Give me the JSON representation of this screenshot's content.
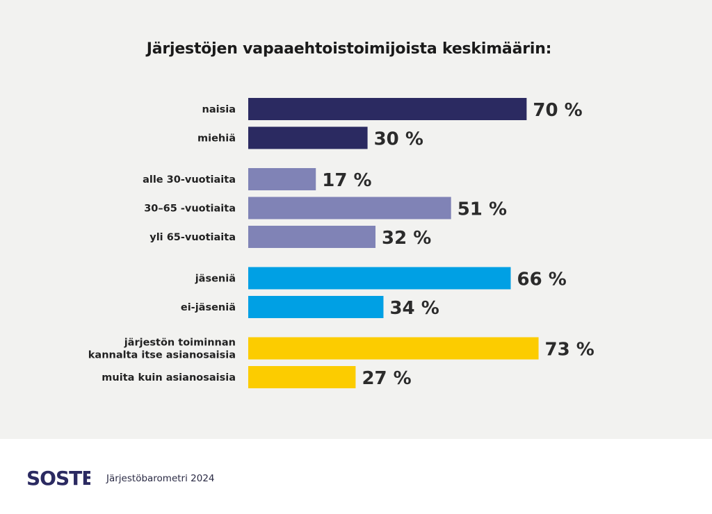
{
  "title": "Järjestöjen vapaaehtoistoimijoista keskimäärin:",
  "logo_text": "SOSTE",
  "source": "Järjestöbarometri 2024",
  "colors": {
    "gender": "#2b2a61",
    "age": "#8083b6",
    "membership": "#00a0e4",
    "stakeholder": "#fccc00",
    "background": "#f2f2f0",
    "logo": "#2b2a61"
  },
  "chart_data": {
    "type": "bar",
    "orientation": "horizontal",
    "title": "Järjestöjen vapaaehtoistoimijoista keskimäärin:",
    "xlabel": "",
    "ylabel": "",
    "xlim": [
      0,
      100
    ],
    "unit": "%",
    "grid": false,
    "groups": [
      {
        "color": "#2b2a61",
        "items": [
          {
            "label": "naisia",
            "value": 70,
            "value_label": "70 %"
          },
          {
            "label": "miehiä",
            "value": 30,
            "value_label": "30 %"
          }
        ]
      },
      {
        "color": "#8083b6",
        "items": [
          {
            "label": "alle 30-vuotiaita",
            "value": 17,
            "value_label": "17 %"
          },
          {
            "label": "30–65 -vuotiaita",
            "value": 51,
            "value_label": "51 %"
          },
          {
            "label": "yli 65-vuotiaita",
            "value": 32,
            "value_label": "32 %"
          }
        ]
      },
      {
        "color": "#00a0e4",
        "items": [
          {
            "label": "jäseniä",
            "value": 66,
            "value_label": "66 %"
          },
          {
            "label": "ei-jäseniä",
            "value": 34,
            "value_label": "34 %"
          }
        ]
      },
      {
        "color": "#fccc00",
        "items": [
          {
            "label": [
              "järjestön toiminnan",
              "kannalta itse asianosaisia"
            ],
            "value": 73,
            "value_label": "73 %"
          },
          {
            "label": "muita kuin asianosaisia",
            "value": 27,
            "value_label": "27 %"
          }
        ]
      }
    ]
  }
}
